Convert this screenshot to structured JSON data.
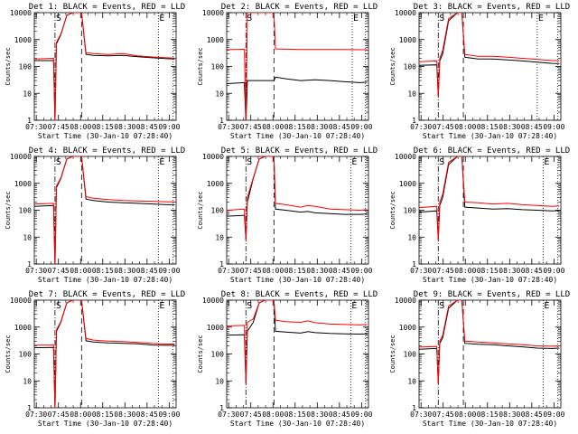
{
  "figure": {
    "start_time_label": "Start Time (30-Jan-10 07:28:40)",
    "ylabel": "Counts/sec",
    "x_ticks": [
      "07:30",
      "07:45",
      "08:00",
      "08:15",
      "08:30",
      "08:45",
      "09:00"
    ],
    "y_ticks": [
      "1",
      "10",
      "100",
      "1000",
      "10000"
    ],
    "colors": {
      "events": "#000000",
      "lld": "#ff0000",
      "axes": "#000000"
    }
  },
  "chart_data": [
    {
      "type": "line",
      "title": "Det 1: BLACK = Events, RED = LLD",
      "markers": [
        "S",
        "E"
      ],
      "xlabel": "Start Time (30-Jan-10 07:28:40)",
      "ylabel": "Counts/sec",
      "x_unit": "minutes after 07:28:40",
      "xlim": [
        0,
        96
      ],
      "ylim": [
        1,
        10000
      ],
      "yscale": "log",
      "vlines": {
        "dashdot": 14,
        "dashed": 32,
        "dotted": [
          84,
          94
        ]
      },
      "series": [
        {
          "name": "Events",
          "color": "#000000",
          "x": [
            0,
            13,
            14,
            15,
            18,
            22,
            26,
            32,
            35,
            40,
            50,
            60,
            70,
            80,
            90,
            95
          ],
          "y": [
            165,
            165,
            0.8,
            700,
            1500,
            8000,
            10000,
            10000,
            280,
            260,
            250,
            260,
            230,
            210,
            195,
            190
          ]
        },
        {
          "name": "LLD",
          "color": "#ff0000",
          "x": [
            0,
            13,
            14,
            15,
            18,
            22,
            26,
            32,
            35,
            40,
            50,
            60,
            70,
            80,
            90,
            95
          ],
          "y": [
            190,
            200,
            0.8,
            800,
            1600,
            8000,
            10000,
            10000,
            330,
            300,
            280,
            300,
            250,
            225,
            210,
            205
          ]
        }
      ]
    },
    {
      "type": "line",
      "title": "Det 2: BLACK = Events, RED = LLD",
      "markers": [
        "S",
        "E"
      ],
      "xlabel": "Start Time (30-Jan-10 07:28:40)",
      "ylabel": "Counts/sec",
      "x_unit": "minutes after 07:28:40",
      "xlim": [
        0,
        96
      ],
      "ylim": [
        1,
        10000
      ],
      "yscale": "log",
      "vlines": {
        "dashdot": 13,
        "dashed": 32,
        "dotted": [
          85,
          94
        ]
      },
      "series": [
        {
          "name": "Events",
          "color": "#000000",
          "x": [
            0,
            12,
            13,
            14,
            18,
            22,
            26,
            30,
            32,
            33,
            40,
            50,
            60,
            70,
            80,
            90,
            95
          ],
          "y": [
            23,
            25,
            0.8,
            30,
            30,
            30,
            30,
            30,
            30,
            40,
            35,
            30,
            32,
            30,
            27,
            25,
            26
          ]
        },
        {
          "name": "LLD",
          "color": "#ff0000",
          "x": [
            0,
            12,
            13,
            14,
            18,
            22,
            26,
            30,
            32,
            33,
            40,
            50,
            60,
            70,
            80,
            90,
            95
          ],
          "y": [
            420,
            440,
            0.8,
            10000,
            10000,
            10000,
            10000,
            10000,
            10000,
            450,
            440,
            430,
            430,
            430,
            425,
            420,
            420
          ]
        }
      ]
    },
    {
      "type": "line",
      "title": "Det 3: BLACK = Events, RED = LLD",
      "markers": [
        "S",
        "E"
      ],
      "xlabel": "Start Time (30-Jan-10 07:28:40)",
      "ylabel": "Counts/sec",
      "x_unit": "minutes after 07:28:40",
      "xlim": [
        0,
        96
      ],
      "ylim": [
        1,
        10000
      ],
      "yscale": "log",
      "vlines": {
        "dashdot": 13,
        "dashed": 30,
        "dotted": [
          80,
          94
        ]
      },
      "series": [
        {
          "name": "Events",
          "color": "#000000",
          "x": [
            0,
            12,
            13,
            14,
            16,
            20,
            26,
            29,
            31,
            40,
            50,
            60,
            70,
            80,
            90,
            95
          ],
          "y": [
            110,
            115,
            8,
            160,
            300,
            5000,
            10000,
            10000,
            220,
            190,
            190,
            175,
            160,
            145,
            130,
            128
          ]
        },
        {
          "name": "LLD",
          "color": "#ff0000",
          "x": [
            0,
            12,
            13,
            14,
            16,
            20,
            26,
            29,
            31,
            40,
            50,
            60,
            70,
            80,
            90,
            95
          ],
          "y": [
            150,
            160,
            8,
            200,
            400,
            6000,
            10000,
            10000,
            280,
            240,
            240,
            220,
            200,
            185,
            165,
            165
          ]
        }
      ]
    },
    {
      "type": "line",
      "title": "Det 4: BLACK = Events, RED = LLD",
      "markers": [
        "S",
        "E"
      ],
      "xlabel": "Start Time (30-Jan-10 07:28:40)",
      "ylabel": "Counts/sec",
      "x_unit": "minutes after 07:28:40",
      "xlim": [
        0,
        96
      ],
      "ylim": [
        1,
        10000
      ],
      "yscale": "log",
      "vlines": {
        "dashdot": 14,
        "dashed": 32,
        "dotted": [
          84,
          94
        ]
      },
      "series": [
        {
          "name": "Events",
          "color": "#000000",
          "x": [
            0,
            13,
            14,
            15,
            18,
            22,
            26,
            32,
            35,
            40,
            50,
            60,
            70,
            80,
            90,
            95
          ],
          "y": [
            140,
            150,
            0.8,
            700,
            1500,
            8000,
            10000,
            10000,
            260,
            230,
            200,
            190,
            180,
            170,
            160,
            160
          ]
        },
        {
          "name": "LLD",
          "color": "#ff0000",
          "x": [
            0,
            13,
            14,
            15,
            18,
            22,
            26,
            32,
            35,
            40,
            50,
            60,
            70,
            80,
            90,
            95
          ],
          "y": [
            170,
            180,
            0.8,
            800,
            1600,
            8000,
            10000,
            10000,
            320,
            280,
            250,
            230,
            220,
            215,
            205,
            205
          ]
        }
      ]
    },
    {
      "type": "line",
      "title": "Det 5: BLACK = Events, RED = LLD",
      "markers": [
        "S",
        "E"
      ],
      "xlabel": "Start Time (30-Jan-10 07:28:40)",
      "ylabel": "Counts/sec",
      "x_unit": "minutes after 07:28:40",
      "xlim": [
        0,
        96
      ],
      "ylim": [
        1,
        10000
      ],
      "yscale": "log",
      "vlines": {
        "dashdot": 13,
        "dashed": 32,
        "dotted": [
          84,
          94
        ]
      },
      "series": [
        {
          "name": "Events",
          "color": "#000000",
          "x": [
            0,
            12,
            13,
            14,
            18,
            22,
            26,
            32,
            33,
            40,
            50,
            55,
            60,
            70,
            80,
            90,
            95
          ],
          "y": [
            60,
            65,
            8,
            200,
            1500,
            8000,
            10000,
            10000,
            110,
            100,
            85,
            90,
            80,
            75,
            70,
            70,
            72
          ]
        },
        {
          "name": "LLD",
          "color": "#ff0000",
          "x": [
            0,
            12,
            13,
            14,
            18,
            22,
            26,
            32,
            33,
            40,
            50,
            55,
            60,
            70,
            80,
            90,
            95
          ],
          "y": [
            100,
            110,
            8,
            300,
            1600,
            8000,
            10000,
            10000,
            180,
            160,
            130,
            150,
            140,
            110,
            105,
            100,
            105
          ]
        }
      ]
    },
    {
      "type": "line",
      "title": "Det 6: BLACK = Events, RED = LLD",
      "markers": [
        "S",
        "E"
      ],
      "xlabel": "Start Time (30-Jan-10 07:28:40)",
      "ylabel": "Counts/sec",
      "x_unit": "minutes after 07:28:40",
      "xlim": [
        0,
        96
      ],
      "ylim": [
        1,
        10000
      ],
      "yscale": "log",
      "vlines": {
        "dashdot": 13,
        "dashed": 30,
        "dotted": [
          84,
          94
        ]
      },
      "series": [
        {
          "name": "Events",
          "color": "#000000",
          "x": [
            0,
            12,
            13,
            14,
            16,
            20,
            26,
            29,
            31,
            40,
            50,
            60,
            70,
            80,
            90,
            95
          ],
          "y": [
            85,
            95,
            8,
            150,
            300,
            5000,
            10000,
            10000,
            130,
            120,
            110,
            115,
            105,
            100,
            95,
            97
          ]
        },
        {
          "name": "LLD",
          "color": "#ff0000",
          "x": [
            0,
            12,
            13,
            14,
            16,
            20,
            26,
            29,
            31,
            40,
            50,
            60,
            70,
            80,
            90,
            95
          ],
          "y": [
            125,
            140,
            8,
            200,
            400,
            6000,
            10000,
            10000,
            200,
            190,
            170,
            180,
            160,
            150,
            140,
            145
          ]
        }
      ]
    },
    {
      "type": "line",
      "title": "Det 7: BLACK = Events, RED = LLD",
      "markers": [
        "S",
        "E"
      ],
      "xlabel": "Start Time (30-Jan-10 07:28:40)",
      "ylabel": "Counts/sec",
      "x_unit": "minutes after 07:28:40",
      "xlim": [
        0,
        96
      ],
      "ylim": [
        1,
        10000
      ],
      "yscale": "log",
      "vlines": {
        "dashdot": 14,
        "dashed": 32,
        "dotted": [
          84,
          94
        ]
      },
      "series": [
        {
          "name": "Events",
          "color": "#000000",
          "x": [
            0,
            13,
            14,
            15,
            18,
            22,
            26,
            32,
            35,
            40,
            50,
            60,
            70,
            80,
            90,
            95
          ],
          "y": [
            170,
            175,
            0.8,
            700,
            1500,
            8000,
            10000,
            10000,
            310,
            280,
            260,
            250,
            240,
            215,
            210,
            210
          ]
        },
        {
          "name": "LLD",
          "color": "#ff0000",
          "x": [
            0,
            13,
            14,
            15,
            18,
            22,
            26,
            32,
            35,
            40,
            50,
            60,
            70,
            80,
            90,
            95
          ],
          "y": [
            210,
            215,
            0.8,
            800,
            1600,
            8000,
            10000,
            10000,
            380,
            330,
            300,
            290,
            270,
            245,
            235,
            235
          ]
        }
      ]
    },
    {
      "type": "line",
      "title": "Det 8: BLACK = Events, RED = LLD",
      "markers": [
        "S",
        "E"
      ],
      "xlabel": "Start Time (30-Jan-10 07:28:40)",
      "ylabel": "Counts/sec",
      "x_unit": "minutes after 07:28:40",
      "xlim": [
        0,
        96
      ],
      "ylim": [
        1,
        10000
      ],
      "yscale": "log",
      "vlines": {
        "dashdot": 13,
        "dashed": 32,
        "dotted": [
          84,
          94
        ]
      },
      "series": [
        {
          "name": "Events",
          "color": "#000000",
          "x": [
            0,
            12,
            13,
            14,
            18,
            22,
            26,
            32,
            33,
            40,
            50,
            55,
            60,
            70,
            80,
            90,
            95
          ],
          "y": [
            500,
            520,
            8,
            700,
            1500,
            8000,
            10000,
            10000,
            700,
            650,
            600,
            680,
            620,
            580,
            560,
            550,
            560
          ]
        },
        {
          "name": "LLD",
          "color": "#ff0000",
          "x": [
            0,
            12,
            13,
            14,
            18,
            22,
            26,
            32,
            33,
            40,
            50,
            55,
            60,
            70,
            80,
            90,
            95
          ],
          "y": [
            1100,
            1150,
            8,
            1500,
            2000,
            8000,
            10000,
            10000,
            1800,
            1600,
            1500,
            1700,
            1450,
            1300,
            1250,
            1200,
            1250
          ]
        }
      ]
    },
    {
      "type": "line",
      "title": "Det 9: BLACK = Events, RED = LLD",
      "markers": [
        "S",
        "E"
      ],
      "xlabel": "Start Time (30-Jan-10 07:28:40)",
      "ylabel": "Counts/sec",
      "x_unit": "minutes after 07:28:40",
      "xlim": [
        0,
        96
      ],
      "ylim": [
        1,
        10000
      ],
      "yscale": "log",
      "vlines": {
        "dashdot": 13,
        "dashed": 30,
        "dotted": [
          84,
          94
        ]
      },
      "series": [
        {
          "name": "Events",
          "color": "#000000",
          "x": [
            0,
            12,
            13,
            14,
            16,
            20,
            26,
            29,
            31,
            40,
            50,
            60,
            70,
            80,
            90,
            95
          ],
          "y": [
            150,
            160,
            8,
            250,
            400,
            5000,
            10000,
            10000,
            250,
            230,
            220,
            200,
            185,
            165,
            160,
            165
          ]
        },
        {
          "name": "LLD",
          "color": "#ff0000",
          "x": [
            0,
            12,
            13,
            14,
            16,
            20,
            26,
            29,
            31,
            40,
            50,
            60,
            70,
            80,
            90,
            95
          ],
          "y": [
            180,
            190,
            8,
            300,
            500,
            6000,
            10000,
            10000,
            300,
            280,
            260,
            240,
            220,
            200,
            195,
            200
          ]
        }
      ]
    }
  ]
}
